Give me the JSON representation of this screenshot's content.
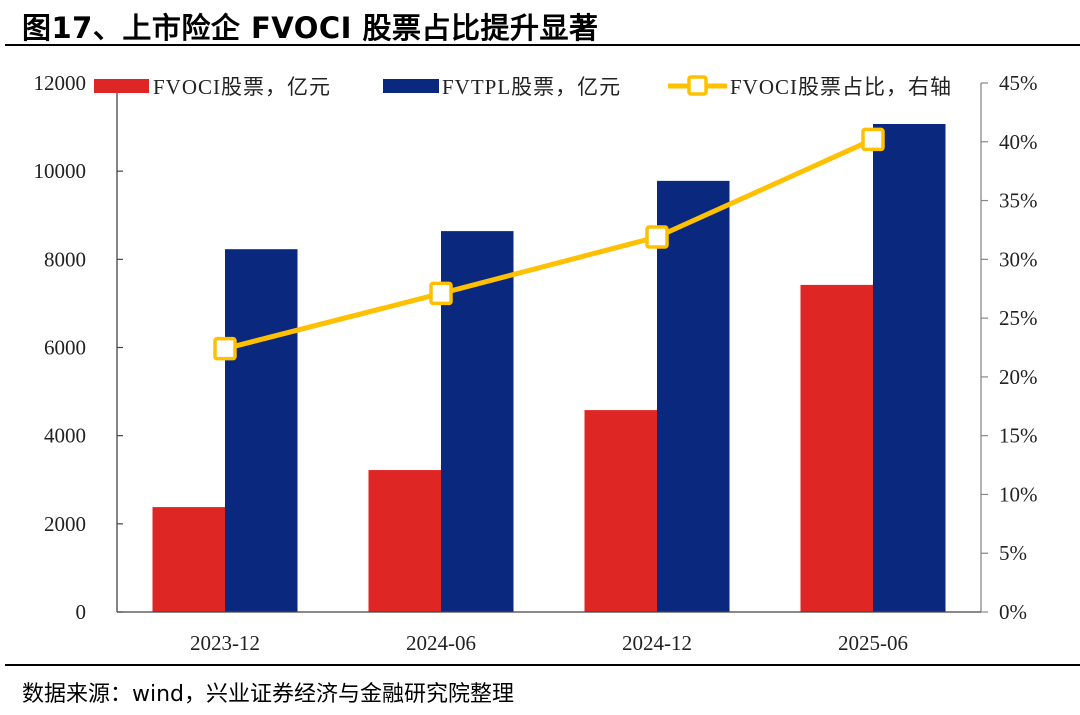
{
  "header": {
    "title": "图17、上市险企 FVOCI 股票占比提升显著"
  },
  "footer": {
    "source": "数据来源：wind，兴业证券经济与金融研究院整理"
  },
  "chart_data": {
    "type": "bar",
    "title": "图17、上市险企 FVOCI 股票占比提升显著",
    "categories": [
      "2023-12",
      "2024-06",
      "2024-12",
      "2025-06"
    ],
    "series": [
      {
        "name": "FVOCI股票，亿元",
        "type": "bar",
        "axis": "left",
        "color": "#DE2625",
        "values": [
          2380,
          3220,
          4580,
          7420
        ]
      },
      {
        "name": "FVTPL股票，亿元",
        "type": "bar",
        "axis": "left",
        "color": "#0A287D",
        "values": [
          8230,
          8640,
          9780,
          11070
        ]
      },
      {
        "name": "FVOCI股票占比，右轴",
        "type": "line",
        "axis": "right",
        "color": "#FFC000",
        "marker": "square-hollow",
        "values": [
          22.4,
          27.1,
          31.9,
          40.2
        ]
      }
    ],
    "left_axis": {
      "min": 0,
      "max": 12000,
      "ticks": [
        "0",
        "2000",
        "4000",
        "6000",
        "8000",
        "10000",
        "12000"
      ],
      "tick_values": [
        0,
        2000,
        4000,
        6000,
        8000,
        10000,
        12000
      ]
    },
    "right_axis": {
      "min": 0,
      "max": 45,
      "ticks": [
        "0%",
        "5%",
        "10%",
        "15%",
        "20%",
        "25%",
        "30%",
        "35%",
        "40%",
        "45%"
      ],
      "tick_values": [
        0,
        5,
        10,
        15,
        20,
        25,
        30,
        35,
        40,
        45
      ]
    },
    "xlabel": "",
    "ylabel": "",
    "grid": false,
    "legend_position": "top"
  }
}
